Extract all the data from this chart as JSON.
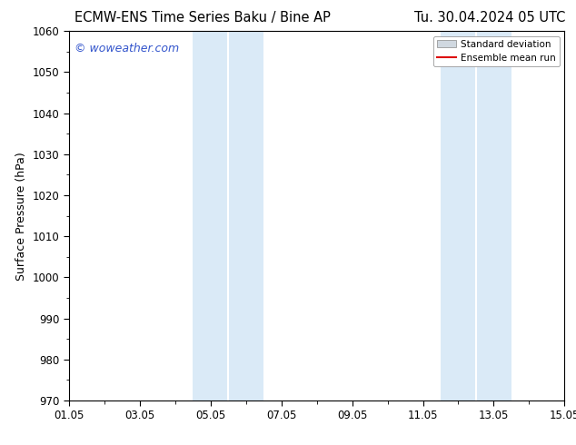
{
  "title_left": "ECMW-ENS Time Series Baku / Bine AP",
  "title_right": "Tu. 30.04.2024 05 UTC",
  "ylabel": "Surface Pressure (hPa)",
  "ylim": [
    970,
    1060
  ],
  "yticks": [
    970,
    980,
    990,
    1000,
    1010,
    1020,
    1030,
    1040,
    1050,
    1060
  ],
  "xlim_start": 0,
  "xlim_end": 14,
  "xtick_labels": [
    "01.05",
    "03.05",
    "05.05",
    "07.05",
    "09.05",
    "11.05",
    "13.05",
    "15.05"
  ],
  "xtick_positions": [
    0,
    2,
    4,
    6,
    8,
    10,
    12,
    14
  ],
  "shading_regions": [
    {
      "x_start": 3.5,
      "x_end": 4.5,
      "color": "#daeaf7"
    },
    {
      "x_start": 4.5,
      "x_end": 5.5,
      "color": "#daeaf7"
    },
    {
      "x_start": 10.5,
      "x_end": 11.5,
      "color": "#daeaf7"
    },
    {
      "x_start": 11.5,
      "x_end": 12.5,
      "color": "#daeaf7"
    }
  ],
  "shading_dividers": [
    4.5,
    11.5
  ],
  "watermark_text": "© woweather.com",
  "watermark_color": "#3355cc",
  "legend_std_color": "#d0d8e0",
  "legend_std_edge": "#999999",
  "legend_mean_color": "#dd1111",
  "background_color": "#ffffff",
  "title_fontsize": 10.5,
  "axis_label_fontsize": 9,
  "tick_fontsize": 8.5
}
